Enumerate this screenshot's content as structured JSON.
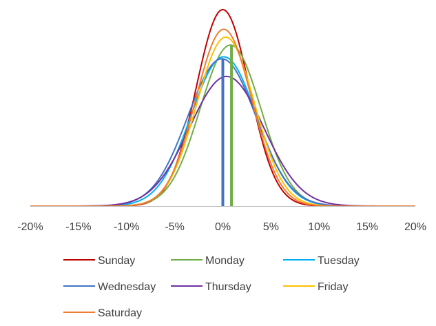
{
  "chart_data": {
    "type": "line",
    "title": "",
    "xlabel": "",
    "ylabel": "",
    "xlim": [
      -0.2,
      0.2
    ],
    "x_ticks": [
      "-20%",
      "-15%",
      "-10%",
      "-5%",
      "0%",
      "5%",
      "10%",
      "15%",
      "20%"
    ],
    "x_tick_values": [
      -0.2,
      -0.15,
      -0.1,
      -0.05,
      0,
      0.05,
      0.1,
      0.15,
      0.2
    ],
    "y_axis_visible": false,
    "grid": false,
    "legend_position": "bottom",
    "series": [
      {
        "name": "Sunday",
        "color": "#C00000",
        "mean": 0.0,
        "sd": 0.0275,
        "peak": 1.0
      },
      {
        "name": "Monday",
        "color": "#70AD47",
        "mean": 0.008,
        "sd": 0.0315,
        "peak": 0.82
      },
      {
        "name": "Tuesday",
        "color": "#00B0F0",
        "mean": 0.001,
        "sd": 0.034,
        "peak": 0.76
      },
      {
        "name": "Wednesday",
        "color": "#4472C4",
        "mean": -0.001,
        "sd": 0.0355,
        "peak": 0.75
      },
      {
        "name": "Thursday",
        "color": "#7030A0",
        "mean": 0.004,
        "sd": 0.0385,
        "peak": 0.66
      },
      {
        "name": "Friday",
        "color": "#FFC000",
        "mean": 0.003,
        "sd": 0.03,
        "peak": 0.86
      },
      {
        "name": "Saturday",
        "color": "#ED7D31",
        "mean": 0.001,
        "sd": 0.029,
        "peak": 0.9
      }
    ],
    "vertical_markers": [
      {
        "x": 0.0,
        "color": "#4472C4",
        "height": 0.75
      },
      {
        "x": 0.009,
        "color": "#70AD47",
        "height": 0.82
      }
    ]
  }
}
